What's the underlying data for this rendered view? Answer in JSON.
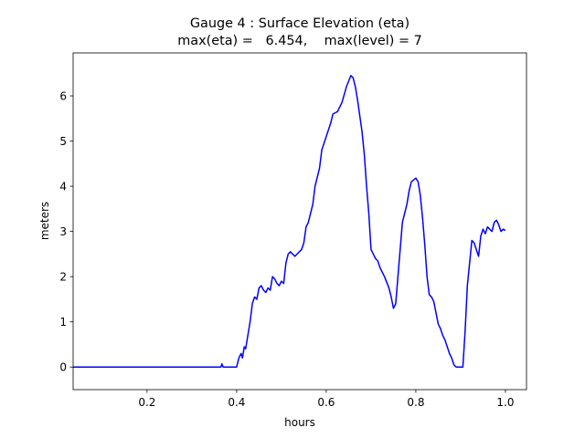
{
  "chart_data": {
    "type": "line",
    "title": [
      "Gauge 4 : Surface Elevation (eta)",
      "max(eta) =   6.454,    max(level) = 7"
    ],
    "xlabel": "hours",
    "ylabel": "meters",
    "xlim": [
      0.035,
      1.047
    ],
    "ylim": [
      -0.5,
      6.95
    ],
    "xticks": [
      0.2,
      0.4,
      0.6,
      0.8,
      {
        "value": 1.0,
        "label": "1.0"
      }
    ],
    "yticks": [
      0,
      1,
      2,
      3,
      4,
      5,
      6
    ],
    "grid": false,
    "series": [
      {
        "color": "#0000ff",
        "x": [
          0.035,
          0.365,
          0.367,
          0.37,
          0.4,
          0.405,
          0.41,
          0.413,
          0.417,
          0.42,
          0.425,
          0.43,
          0.435,
          0.44,
          0.445,
          0.45,
          0.455,
          0.46,
          0.465,
          0.47,
          0.475,
          0.48,
          0.485,
          0.49,
          0.495,
          0.5,
          0.505,
          0.51,
          0.515,
          0.52,
          0.525,
          0.53,
          0.535,
          0.545,
          0.55,
          0.555,
          0.56,
          0.57,
          0.575,
          0.585,
          0.59,
          0.6,
          0.61,
          0.615,
          0.625,
          0.635,
          0.645,
          0.655,
          0.66,
          0.665,
          0.67,
          0.68,
          0.685,
          0.69,
          0.695,
          0.7,
          0.705,
          0.71,
          0.715,
          0.72,
          0.73,
          0.74,
          0.745,
          0.75,
          0.755,
          0.76,
          0.765,
          0.77,
          0.78,
          0.785,
          0.79,
          0.8,
          0.805,
          0.81,
          0.815,
          0.82,
          0.825,
          0.83,
          0.835,
          0.84,
          0.845,
          0.85,
          0.855,
          0.86,
          0.865,
          0.87,
          0.875,
          0.88,
          0.885,
          0.89,
          0.905,
          0.91,
          0.915,
          0.92,
          0.925,
          0.93,
          0.935,
          0.94,
          0.945,
          0.95,
          0.955,
          0.96,
          0.965,
          0.97,
          0.975,
          0.98,
          0.985,
          0.99,
          0.995,
          1.0
        ],
        "values": [
          0,
          0,
          0.07,
          0,
          0,
          0.2,
          0.3,
          0.2,
          0.45,
          0.4,
          0.7,
          1.0,
          1.4,
          1.55,
          1.5,
          1.75,
          1.8,
          1.7,
          1.65,
          1.75,
          1.7,
          2.0,
          1.95,
          1.85,
          1.8,
          1.9,
          1.85,
          2.3,
          2.5,
          2.55,
          2.5,
          2.45,
          2.5,
          2.6,
          2.75,
          3.1,
          3.2,
          3.6,
          4.0,
          4.4,
          4.8,
          5.1,
          5.4,
          5.6,
          5.65,
          5.85,
          6.2,
          6.45,
          6.4,
          6.2,
          5.9,
          5.2,
          4.7,
          4.0,
          3.4,
          2.6,
          2.5,
          2.4,
          2.35,
          2.2,
          2.0,
          1.75,
          1.55,
          1.3,
          1.4,
          2.0,
          2.6,
          3.2,
          3.6,
          3.9,
          4.1,
          4.18,
          4.1,
          3.8,
          3.3,
          2.7,
          2.0,
          1.6,
          1.55,
          1.45,
          1.2,
          0.95,
          0.85,
          0.7,
          0.6,
          0.45,
          0.3,
          0.2,
          0.05,
          0,
          0,
          0.8,
          1.8,
          2.3,
          2.8,
          2.75,
          2.6,
          2.45,
          2.9,
          3.05,
          2.95,
          3.1,
          3.05,
          3.0,
          3.2,
          3.25,
          3.15,
          3.0,
          3.05,
          3.02
        ]
      }
    ]
  }
}
